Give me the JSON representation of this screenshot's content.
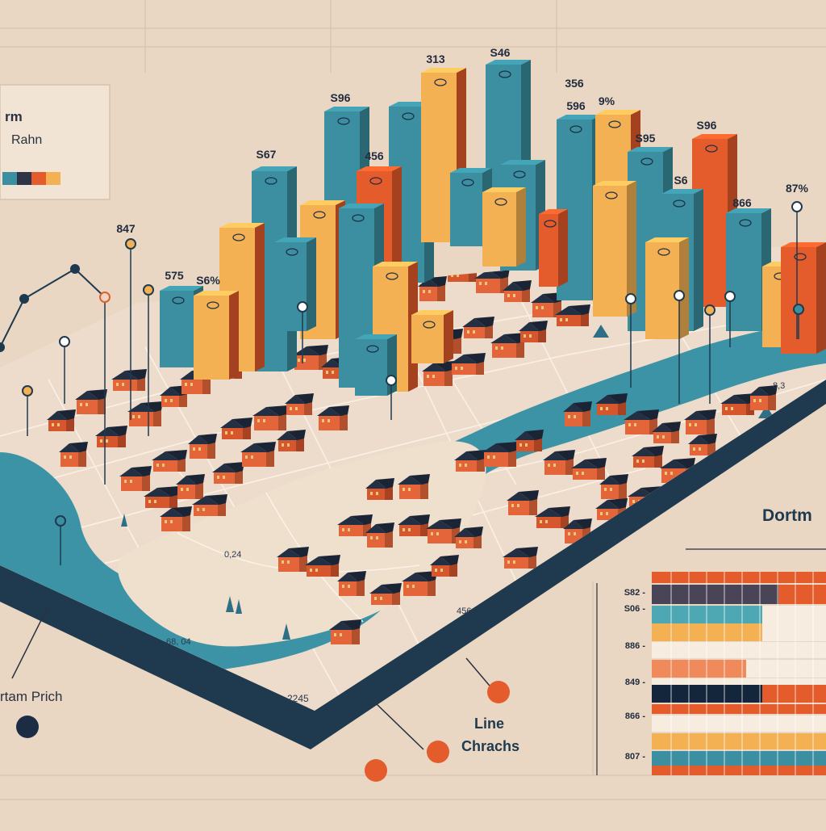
{
  "colors": {
    "background": "#e9d6c3",
    "teal": "#3b8fa0",
    "orange": "#e45c2b",
    "amber": "#f3b154",
    "navy": "#1b2c44",
    "river": "#3d93a6",
    "roof": "#233043",
    "house": "#e4653a"
  },
  "legend": {
    "title": "rm",
    "subtitle": "Rahn",
    "swatches": [
      "#3b8fa0",
      "#2f3348",
      "#e45c2b",
      "#f3b154"
    ]
  },
  "chart_data": [
    {
      "type": "bar",
      "title": "",
      "bar_labels": [
        "313",
        "S46",
        "356",
        "S96",
        "596",
        "9%",
        "S95",
        "S96",
        "456",
        "S67",
        "S6",
        "866",
        "87%",
        "847",
        "575",
        "S6%"
      ]
    },
    {
      "type": "line",
      "title": "",
      "point_count": 4
    },
    {
      "type": "bar",
      "orientation": "horizontal",
      "title": "Dortm",
      "categories": [
        "S82 -",
        "S06 -",
        "886 -",
        "849 -",
        "866 -",
        "807 -"
      ]
    }
  ],
  "map_labels": {
    "river_right": "8,3",
    "center": "0,24",
    "left_lower": "68, 04",
    "river_lower": "456",
    "bottom": "2245"
  },
  "callouts": {
    "left": "rtam Prich",
    "bottom_line1": "Line",
    "bottom_line2": "Chrachs"
  }
}
